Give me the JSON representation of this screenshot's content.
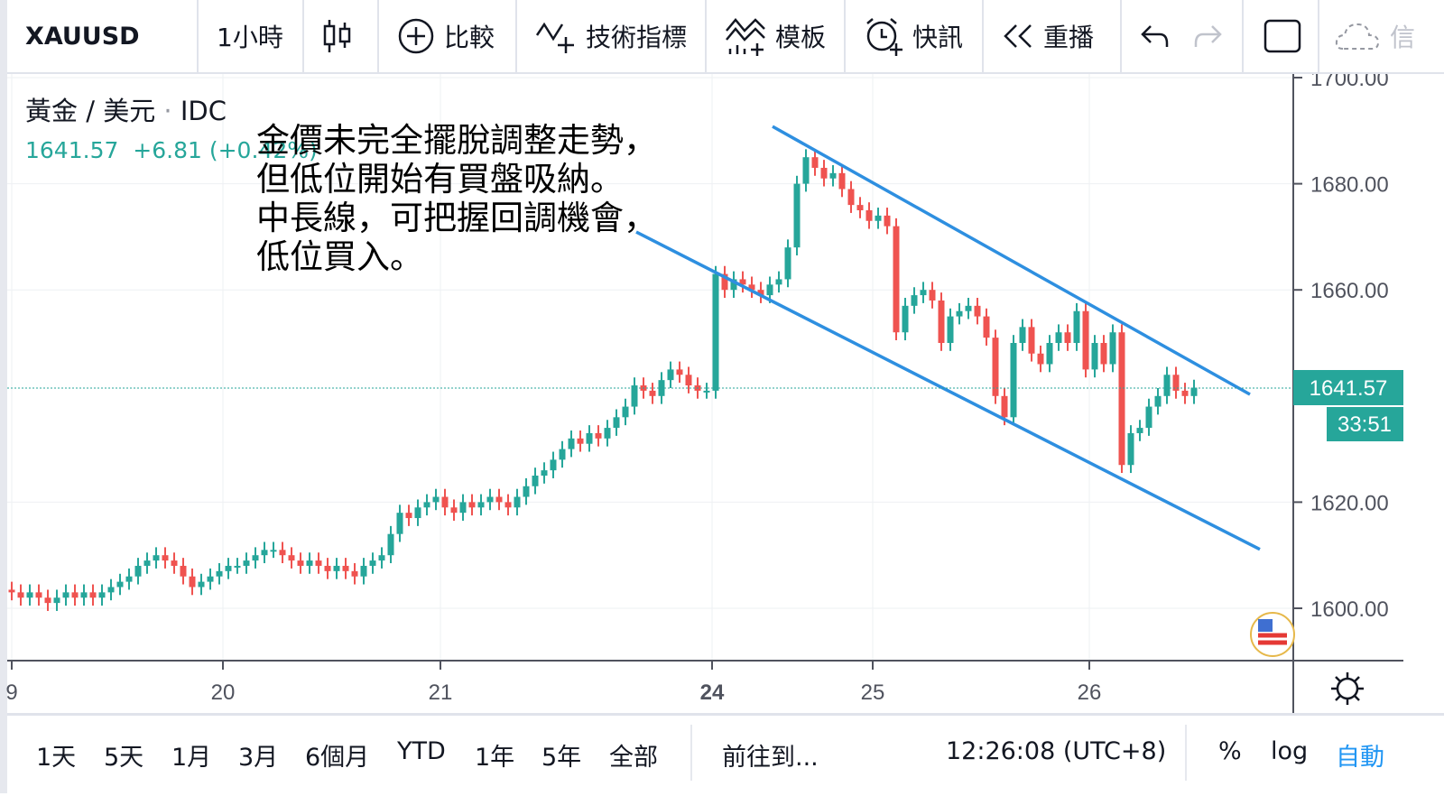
{
  "toolbar": {
    "symbol": "XAUUSD",
    "interval": "1小時",
    "chart_type_icon": "candles-icon",
    "compare": "比較",
    "indicators": "技術指標",
    "templates": "模板",
    "alerts": "快訊",
    "replay": "重播",
    "cut_label": "信"
  },
  "legend": {
    "title": "黃金 / 美元",
    "source": "IDC",
    "price": "1641.57",
    "change": "+6.81 (+0.42%)"
  },
  "annotation": [
    "金價未完全擺脫調整走勢，",
    "但低位開始有買盤吸納。",
    "中長線，可把握回調機會，",
    "低位買入。"
  ],
  "price_label": "1641.57",
  "countdown": "33:51",
  "bottom": {
    "ranges": [
      "1天",
      "5天",
      "1月",
      "3月",
      "6個月",
      "YTD",
      "1年",
      "5年",
      "全部"
    ],
    "goto": "前往到...",
    "time": "12:26:08 (UTC+8)",
    "percent": "%",
    "log": "log",
    "auto": "自動"
  },
  "colors": {
    "up": "#26a69a",
    "down": "#ef5350",
    "trendline": "#2e8fe0",
    "accent": "#2196f3"
  },
  "chart_data": {
    "type": "candlestick",
    "interval": "1h",
    "y_ticks": [
      "1600.00",
      "1620.00",
      "1660.00",
      "1680.00",
      "1700.00"
    ],
    "ylim": [
      1590,
      1700
    ],
    "x_ticks": [
      {
        "label": "9",
        "index": 0
      },
      {
        "label": "20",
        "index": 23.4
      },
      {
        "label": "21",
        "index": 47.5
      },
      {
        "label": "24",
        "index": 77.6
      },
      {
        "label": "25",
        "index": 95.4
      },
      {
        "label": "26",
        "index": 119.4
      }
    ],
    "last_price": 1641.57,
    "closes": [
      1603,
      1602,
      1603,
      1602,
      1601,
      1602,
      1603,
      1602,
      1603,
      1602,
      1603,
      1604,
      1605,
      1606,
      1608,
      1609,
      1610,
      1609,
      1608,
      1606,
      1604,
      1605,
      1606,
      1607,
      1608,
      1608,
      1609,
      1610,
      1611,
      1611,
      1610,
      1609,
      1608,
      1609,
      1608,
      1607,
      1608,
      1607,
      1606,
      1608,
      1609,
      1610,
      1614,
      1618,
      1617,
      1619,
      1620,
      1621,
      1619,
      1618,
      1620,
      1619,
      1620,
      1621,
      1620,
      1619,
      1621,
      1623,
      1625,
      1626,
      1628,
      1630,
      1632,
      1631,
      1633,
      1632,
      1634,
      1636,
      1638,
      1642,
      1641,
      1640,
      1643,
      1645,
      1644,
      1642,
      1641,
      1641,
      1663,
      1660,
      1662,
      1661,
      1660,
      1659,
      1661,
      1662,
      1668,
      1680,
      1685,
      1683,
      1681,
      1682,
      1679,
      1676,
      1675,
      1673,
      1674,
      1672,
      1652,
      1657,
      1659,
      1660,
      1658,
      1650,
      1655,
      1656,
      1657,
      1655,
      1651,
      1640,
      1636,
      1650,
      1653,
      1648,
      1646,
      1650,
      1652,
      1650,
      1656,
      1645,
      1650,
      1646,
      1652,
      1627,
      1633,
      1634,
      1638,
      1640,
      1644,
      1641,
      1640,
      1641.57
    ],
    "trendlines": [
      {
        "from": {
          "index": 84.3,
          "price": 1690.8
        },
        "to": {
          "index": 137.2,
          "price": 1640.3
        }
      },
      {
        "from": {
          "index": 69.2,
          "price": 1670.9
        },
        "to": {
          "index": 138.3,
          "price": 1611.1
        }
      }
    ]
  }
}
